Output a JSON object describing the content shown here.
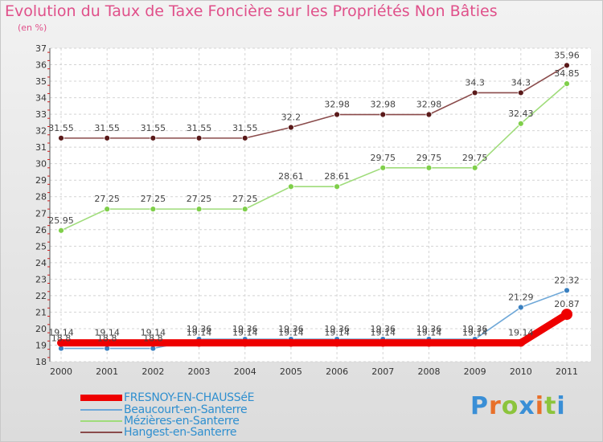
{
  "title": "Evolution du Taux de Taxe Foncière sur les Propriétés Non Bâties",
  "unit": "(en %)",
  "brand": {
    "letters": [
      "P",
      "r",
      "o",
      "x",
      "i",
      "t",
      "i"
    ],
    "colors": [
      "#3a8fd6",
      "#e8702a",
      "#8cc43c",
      "#3a8fd6",
      "#e8702a",
      "#8cc43c",
      "#3a8fd6"
    ]
  },
  "chart_data": {
    "type": "line",
    "x": [
      "2000",
      "2001",
      "2002",
      "2003",
      "2004",
      "2005",
      "2006",
      "2007",
      "2008",
      "2009",
      "2010",
      "2011"
    ],
    "ylim": [
      18,
      37
    ],
    "yticks": [
      18,
      19,
      20,
      21,
      22,
      23,
      24,
      25,
      26,
      27,
      28,
      29,
      30,
      31,
      32,
      33,
      34,
      35,
      36,
      37
    ],
    "grid": true,
    "legend_position": "bottom-left",
    "series": [
      {
        "name": "FRESNOY-EN-CHAUSSéE",
        "color": "#ee0000",
        "values": [
          19.14,
          19.14,
          19.14,
          19.14,
          19.14,
          19.14,
          19.14,
          19.14,
          19.14,
          19.14,
          19.14,
          20.87
        ],
        "labels": [
          "19.14",
          "19.14",
          "19.14",
          "19.14",
          "19.14",
          "19.14",
          "19.14",
          "19.14",
          "19.14",
          "19.14",
          "19.14",
          "20.87"
        ]
      },
      {
        "name": "Beaucourt-en-Santerre",
        "color": "#6fa8d8",
        "values": [
          18.8,
          18.8,
          18.8,
          19.36,
          19.36,
          19.36,
          19.36,
          19.36,
          19.36,
          19.36,
          21.29,
          22.32
        ],
        "labels": [
          "18.8",
          "18.8",
          "18.8",
          "19.36",
          "19.36",
          "19.36",
          "19.36",
          "19.36",
          "19.36",
          "19.36",
          "21.29",
          "22.32"
        ]
      },
      {
        "name": "Mézières-en-Santerre",
        "color": "#9fdc7a",
        "values": [
          25.95,
          27.25,
          27.25,
          27.25,
          27.25,
          28.61,
          28.61,
          29.75,
          29.75,
          29.75,
          32.43,
          34.85
        ],
        "labels": [
          "25.95",
          "27.25",
          "27.25",
          "27.25",
          "27.25",
          "28.61",
          "28.61",
          "29.75",
          "29.75",
          "29.75",
          "32.43",
          "34.85"
        ]
      },
      {
        "name": "Hangest-en-Santerre",
        "color": "#8a4b4b",
        "values": [
          31.55,
          31.55,
          31.55,
          31.55,
          31.55,
          32.2,
          32.98,
          32.98,
          32.98,
          34.3,
          34.3,
          35.96
        ],
        "labels": [
          "31.55",
          "31.55",
          "31.55",
          "31.55",
          "31.55",
          "32.2",
          "32.98",
          "32.98",
          "32.98",
          "34.3",
          "34.3",
          "35.96"
        ]
      }
    ]
  }
}
